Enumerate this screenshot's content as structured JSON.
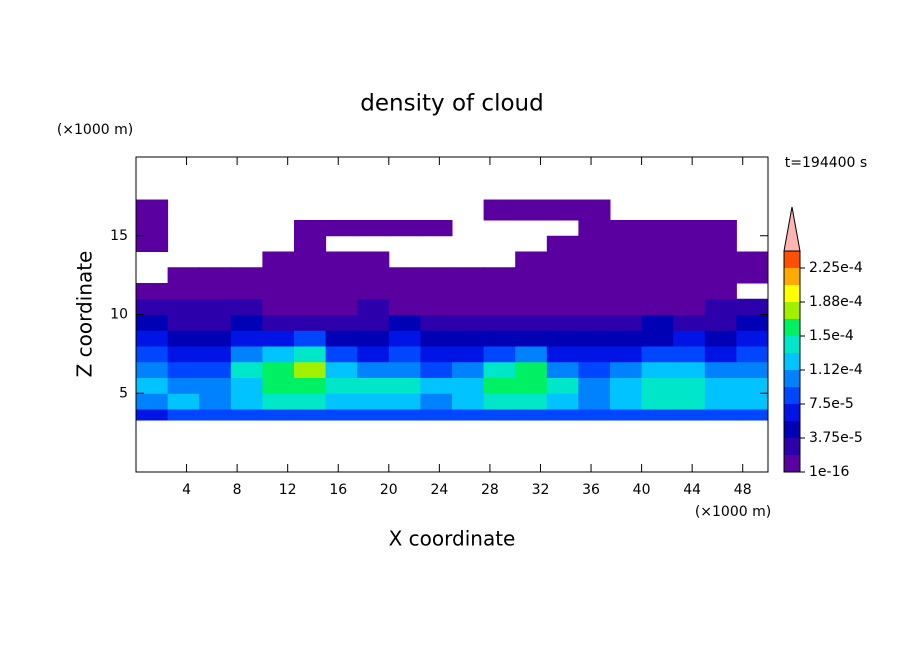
{
  "chart_data": {
    "type": "contour",
    "title": "density of cloud",
    "xlabel": "X coordinate",
    "ylabel": "Z coordinate",
    "xunit": "(×1000 m)",
    "yunit": "(×1000 m)",
    "annotation": "t=194400 s",
    "xlim": [
      0,
      50
    ],
    "ylim": [
      0,
      20
    ],
    "xticks": [
      4,
      8,
      12,
      16,
      20,
      24,
      28,
      32,
      36,
      40,
      44,
      48
    ],
    "yticks": [
      5,
      10,
      15
    ],
    "x_edges": [
      0,
      2.5,
      5,
      7.5,
      10,
      12.5,
      15,
      17.5,
      20,
      22.5,
      25,
      27.5,
      30,
      32.5,
      35,
      37.5,
      40,
      42.5,
      45,
      47.5,
      50
    ],
    "z_edges": [
      3.3,
      4,
      5,
      6,
      7,
      8,
      9,
      10,
      11,
      12,
      13,
      14,
      15,
      16,
      17.3
    ],
    "values": [
      [
        6e-05,
        8e-05,
        8e-05,
        8e-05,
        8e-05,
        8e-05,
        8e-05,
        8e-05,
        8e-05,
        8e-05,
        8e-05,
        8e-05,
        8e-05,
        8e-05,
        8e-05,
        8e-05,
        8e-05,
        8e-05,
        8e-05,
        8e-05
      ],
      [
        0.0001,
        0.00012,
        0.0001,
        0.00012,
        0.00014,
        0.00014,
        0.00012,
        0.00012,
        0.00012,
        0.0001,
        0.00012,
        0.00014,
        0.00014,
        0.00012,
        0.0001,
        0.00012,
        0.00014,
        0.00014,
        0.00012,
        0.00012
      ],
      [
        0.00012,
        0.0001,
        0.0001,
        0.00012,
        0.00016,
        0.00016,
        0.00014,
        0.00014,
        0.00014,
        0.00012,
        0.00012,
        0.00016,
        0.00016,
        0.00014,
        0.0001,
        0.00012,
        0.00014,
        0.00014,
        0.00012,
        0.00012
      ],
      [
        0.0001,
        8e-05,
        8e-05,
        0.00014,
        0.00016,
        0.00018,
        0.00012,
        0.0001,
        0.0001,
        8e-05,
        0.0001,
        0.00014,
        0.00016,
        0.0001,
        8e-05,
        0.0001,
        0.00012,
        0.00012,
        0.0001,
        0.0001
      ],
      [
        8e-05,
        6e-05,
        6e-05,
        0.0001,
        0.00012,
        0.00014,
        8e-05,
        6e-05,
        8e-05,
        6e-05,
        6e-05,
        8e-05,
        0.0001,
        6e-05,
        6e-05,
        6e-05,
        8e-05,
        8e-05,
        6e-05,
        8e-05
      ],
      [
        6e-05,
        4e-05,
        4e-05,
        6e-05,
        6e-05,
        8e-05,
        4e-05,
        4e-05,
        6e-05,
        4e-05,
        4e-05,
        4e-05,
        4e-05,
        4e-05,
        4e-05,
        4e-05,
        4e-05,
        6e-05,
        4e-05,
        6e-05
      ],
      [
        4e-05,
        2.5e-05,
        2.5e-05,
        4e-05,
        2.5e-05,
        2.5e-05,
        2.5e-05,
        2.5e-05,
        4e-05,
        2.5e-05,
        2.5e-05,
        2.5e-05,
        2.5e-05,
        2.5e-05,
        2.5e-05,
        2.5e-05,
        4e-05,
        2.5e-05,
        2.5e-05,
        4e-05
      ],
      [
        2.5e-05,
        2.5e-05,
        2.5e-05,
        2.5e-05,
        1e-05,
        1e-05,
        1e-05,
        2.5e-05,
        1e-05,
        1e-05,
        1e-05,
        1e-05,
        1e-05,
        1e-05,
        1e-05,
        1e-05,
        1e-05,
        1e-05,
        2.5e-05,
        2.5e-05
      ],
      [
        1e-05,
        1e-05,
        1e-05,
        1e-05,
        1e-05,
        1e-05,
        1e-05,
        1e-05,
        1e-05,
        1e-05,
        1e-05,
        1e-05,
        1e-05,
        1e-05,
        1e-05,
        1e-05,
        1e-05,
        1e-05,
        1e-05,
        null
      ],
      [
        null,
        1e-05,
        1e-05,
        1e-05,
        1e-05,
        1e-05,
        1e-05,
        1e-05,
        1e-05,
        1e-05,
        1e-05,
        1e-05,
        1e-05,
        1e-05,
        1e-05,
        1e-05,
        1e-05,
        1e-05,
        1e-05,
        1e-05
      ],
      [
        null,
        null,
        null,
        null,
        1e-05,
        1e-05,
        1e-05,
        1e-05,
        null,
        null,
        null,
        null,
        1e-05,
        1e-05,
        1e-05,
        1e-05,
        1e-05,
        1e-05,
        1e-05,
        1e-05
      ],
      [
        1e-05,
        null,
        null,
        null,
        null,
        1e-05,
        null,
        null,
        null,
        null,
        null,
        null,
        null,
        1e-05,
        1e-05,
        1e-05,
        1e-05,
        1e-05,
        1e-05,
        null
      ],
      [
        1e-05,
        null,
        null,
        null,
        null,
        1e-05,
        1e-05,
        1e-05,
        1e-05,
        1e-05,
        null,
        null,
        null,
        null,
        1e-05,
        1e-05,
        1e-05,
        1e-05,
        1e-05,
        null
      ],
      [
        1e-05,
        null,
        null,
        null,
        null,
        null,
        null,
        null,
        null,
        null,
        null,
        1e-05,
        1e-05,
        1e-05,
        1e-05,
        null,
        null,
        null,
        null,
        null
      ]
    ],
    "levels": [
      1e-16,
      1.875e-05,
      3.75e-05,
      5.625e-05,
      7.5e-05,
      9.375e-05,
      0.0001125,
      0.00013125,
      0.00015,
      0.00016875,
      0.0001875,
      0.00020625,
      0.000225,
      0.00024375
    ],
    "colors": [
      "#5a00a0",
      "#2c00aa",
      "#0000b4",
      "#0014e6",
      "#0046ff",
      "#0082ff",
      "#00c3ff",
      "#00e6c8",
      "#00f064",
      "#a0f000",
      "#ffff00",
      "#ffaa00",
      "#ff5000"
    ],
    "extend_color": "#ffb4b4",
    "colorbar_ticks": [
      {
        "value": 1e-16,
        "label": "1e-16"
      },
      {
        "value": 3.75e-05,
        "label": "3.75e-5"
      },
      {
        "value": 7.5e-05,
        "label": "7.5e-5"
      },
      {
        "value": 0.0001125,
        "label": "1.12e-4"
      },
      {
        "value": 0.00015,
        "label": "1.5e-4"
      },
      {
        "value": 0.0001875,
        "label": "1.88e-4"
      },
      {
        "value": 0.000225,
        "label": "2.25e-4"
      }
    ]
  }
}
